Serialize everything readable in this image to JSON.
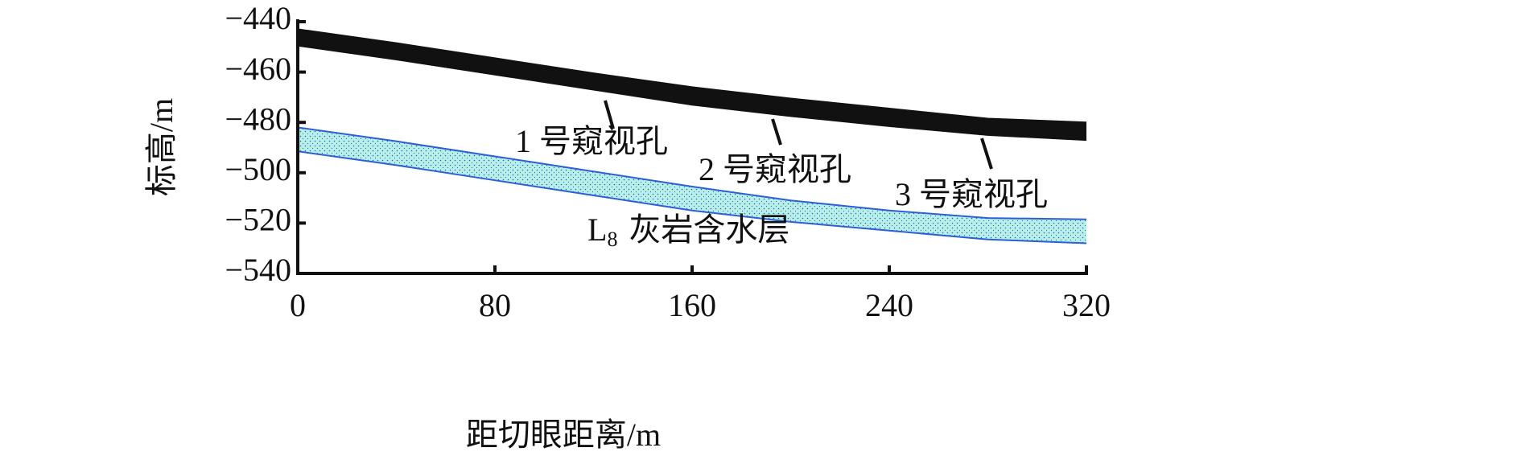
{
  "chart_data": {
    "type": "band",
    "xlabel": "距切眼距离/m",
    "ylabel": "标高/m",
    "x": [
      0,
      40,
      80,
      120,
      160,
      200,
      240,
      280,
      320
    ],
    "xlim": [
      0,
      320
    ],
    "xticks": [
      0,
      80,
      160,
      240,
      320
    ],
    "ylim": [
      -540,
      -440
    ],
    "yticks": [
      {
        "value": -440,
        "label": "−440"
      },
      {
        "value": -460,
        "label": "−460"
      },
      {
        "value": -480,
        "label": "−480"
      },
      {
        "value": -500,
        "label": "−500"
      },
      {
        "value": -520,
        "label": "−520"
      },
      {
        "value": -540,
        "label": "−540"
      }
    ],
    "series": [
      {
        "color": "#111111",
        "edge": "#111111",
        "upper": [
          -443,
          -448.5,
          -454.5,
          -460.5,
          -466,
          -470.5,
          -474.5,
          -478.5,
          -480
        ],
        "lower": [
          -449.5,
          -455,
          -461,
          -467,
          -473,
          -477.5,
          -481.5,
          -485,
          -487
        ]
      },
      {
        "color": "#b8f0e6",
        "edge": "#2a5fd8",
        "upper": [
          -482,
          -487.5,
          -493.5,
          -499.5,
          -505.5,
          -511,
          -515,
          -518,
          -518.5
        ],
        "lower": [
          -491.5,
          -497,
          -503,
          -509,
          -515,
          -519.5,
          -523,
          -526.5,
          -528
        ]
      }
    ],
    "annotations": [
      {
        "text": "1 号窥视孔"
      },
      {
        "text": "2 号窥视孔"
      },
      {
        "text": "3 号窥视孔"
      },
      {
        "label": "L",
        "subscript": "8",
        "text": "灰岩含水层"
      }
    ]
  }
}
